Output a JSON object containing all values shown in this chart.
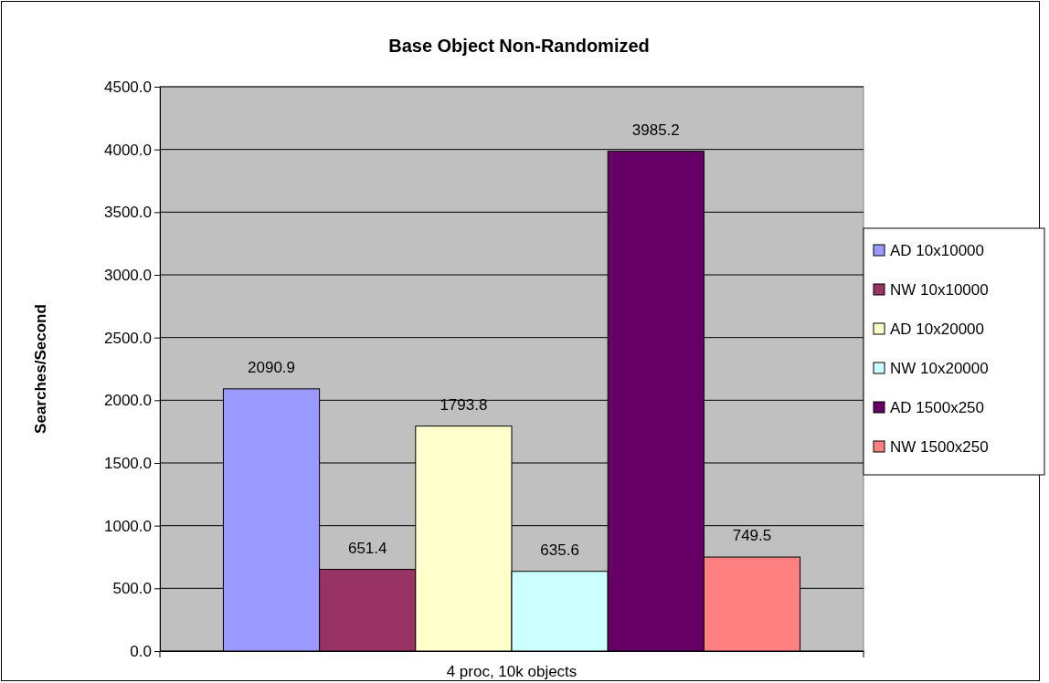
{
  "chart_data": {
    "type": "bar",
    "title": "Base Object Non-Randomized",
    "ylabel": "Searches/Second",
    "categories": [
      "4 proc, 10k objects"
    ],
    "series": [
      {
        "name": "AD 10x10000",
        "color": "#9999ff",
        "values": [
          2090.9
        ]
      },
      {
        "name": "NW 10x10000",
        "color": "#993366",
        "values": [
          651.4
        ]
      },
      {
        "name": "AD 10x20000",
        "color": "#ffffcc",
        "values": [
          1793.8
        ]
      },
      {
        "name": "NW 10x20000",
        "color": "#ccffff",
        "values": [
          635.6
        ]
      },
      {
        "name": "AD 1500x250",
        "color": "#660066",
        "values": [
          3985.2
        ]
      },
      {
        "name": "NW 1500x250",
        "color": "#ff8080",
        "values": [
          749.5
        ]
      }
    ],
    "ylim": [
      0,
      4500
    ],
    "yticks": [
      {
        "value": 0,
        "label": "0.0"
      },
      {
        "value": 500,
        "label": "500.0"
      },
      {
        "value": 1000,
        "label": "1000.0"
      },
      {
        "value": 1500,
        "label": "1500.0"
      },
      {
        "value": 2000,
        "label": "2000.0"
      },
      {
        "value": 2500,
        "label": "2500.0"
      },
      {
        "value": 3000,
        "label": "3000.0"
      },
      {
        "value": 3500,
        "label": "3500.0"
      },
      {
        "value": 4000,
        "label": "4000.0"
      },
      {
        "value": 4500,
        "label": "4500.0"
      }
    ],
    "grid": "y",
    "legend": "right",
    "data_labels": true
  }
}
